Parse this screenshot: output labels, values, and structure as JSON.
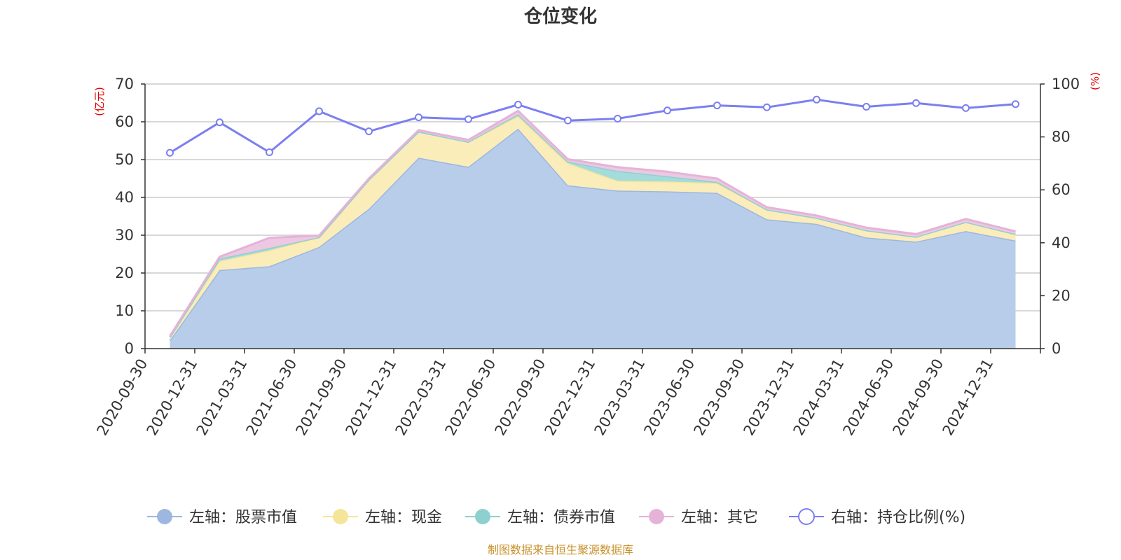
{
  "chart_data": {
    "type": "area",
    "title": "仓位变化",
    "categories": [
      "2020-09-30",
      "2020-12-31",
      "2021-03-31",
      "2021-06-30",
      "2021-09-30",
      "2021-12-31",
      "2022-03-31",
      "2022-06-30",
      "2022-09-30",
      "2022-12-31",
      "2023-03-31",
      "2023-06-30",
      "2023-09-30",
      "2023-12-31",
      "2024-03-31",
      "2024-06-30",
      "2024-09-30",
      "2024-12-31"
    ],
    "left_axis": {
      "unit": "(亿元)",
      "ylim": [
        0,
        70
      ],
      "ticks": [
        "0",
        "10",
        "20",
        "30",
        "40",
        "50",
        "60",
        "70"
      ]
    },
    "right_axis": {
      "unit": "(%)",
      "ylim": [
        0,
        100
      ],
      "ticks": [
        "0",
        "20",
        "40",
        "60",
        "80",
        "100"
      ]
    },
    "stacked": true,
    "grid": true,
    "legend_position": "bottom",
    "series": [
      {
        "name": "左轴：股票市值",
        "axis": "left",
        "kind": "area",
        "color": "#9db7e0",
        "fill": "#b8cdea",
        "values": [
          2.2,
          20.8,
          21.8,
          26.9,
          37.0,
          50.5,
          48.1,
          58.2,
          43.2,
          41.8,
          41.6,
          41.2,
          34.2,
          33.0,
          29.4,
          28.3,
          31.1,
          28.6
        ]
      },
      {
        "name": "左轴：现金",
        "axis": "left",
        "kind": "area",
        "color": "#f5e59a",
        "fill": "#faedba",
        "values": [
          0.8,
          2.4,
          4.2,
          2.6,
          7.7,
          6.9,
          6.6,
          3.3,
          5.9,
          2.6,
          2.6,
          2.6,
          2.6,
          1.6,
          1.9,
          1.3,
          2.4,
          1.7
        ]
      },
      {
        "name": "左轴：债券市值",
        "axis": "left",
        "kind": "area",
        "color": "#8ed0d0",
        "fill": "#a4dcdc",
        "values": [
          0,
          0.6,
          0.6,
          0,
          0,
          0,
          0,
          0.5,
          0.4,
          2.6,
          1.4,
          0.3,
          0,
          0,
          0,
          0,
          0,
          0
        ]
      },
      {
        "name": "左轴：其它",
        "axis": "left",
        "kind": "area",
        "color": "#e5b3d8",
        "fill": "#edc8e3",
        "values": [
          0.3,
          0.5,
          2.7,
          0.4,
          0.3,
          0.4,
          0.5,
          0.9,
          0.6,
          1.0,
          1.2,
          0.9,
          0.6,
          0.6,
          0.7,
          0.7,
          0.8,
          0.7
        ]
      },
      {
        "name": "右轴：持仓比例(%)",
        "axis": "right",
        "kind": "line",
        "color": "#7b7ff0",
        "values": [
          74.0,
          85.5,
          74.2,
          89.7,
          82.1,
          87.4,
          86.7,
          92.2,
          86.2,
          86.9,
          90.0,
          91.9,
          91.2,
          94.1,
          91.4,
          92.8,
          90.9,
          92.4
        ]
      }
    ]
  },
  "footer": {
    "source": "制图数据来自恒生聚源数据库"
  },
  "colors": {
    "axis": "#333333",
    "grid": "#cccccc",
    "unit": "#e00000",
    "source": "#c8912a"
  }
}
